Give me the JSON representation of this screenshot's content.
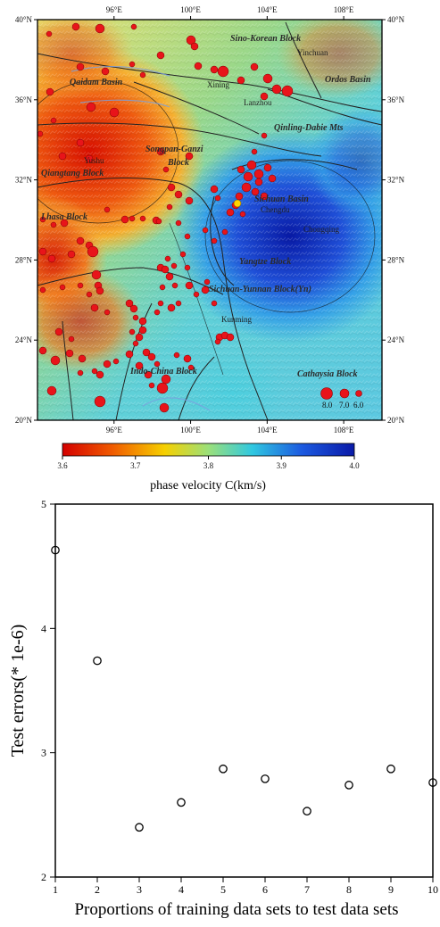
{
  "chart_data": [
    {
      "type": "heatmap",
      "x_ticks": [
        "96°E",
        "100°E",
        "104°E",
        "108°E"
      ],
      "x_tick_values": [
        96,
        100,
        104,
        108
      ],
      "y_ticks": [
        "40°N",
        "36°N",
        "32°N",
        "28°N",
        "24°N",
        "20°N"
      ],
      "y_tick_values": [
        40,
        36,
        32,
        28,
        24,
        20
      ],
      "xlim": [
        92,
        110
      ],
      "ylim": [
        20,
        40
      ],
      "colorbar": {
        "label": "phase velocity C(km/s)",
        "ticks": [
          "3.6",
          "3.7",
          "3.8",
          "3.9",
          "4.0"
        ],
        "range": [
          3.6,
          4.0
        ],
        "colors": [
          "#d40000",
          "#f05a00",
          "#f6d000",
          "#9be07a",
          "#30c8e0",
          "#1c5ae0",
          "#0a1aa8"
        ]
      },
      "region_labels": [
        "Sino-Korean Block",
        "Qaidam Basin",
        "Ordos Basin",
        "Qinling-Dabie Mts",
        "Songpan-Ganzi",
        "Block",
        "Qiangtang Block",
        "Sichuan Basin",
        "Lhasa Block",
        "Yangtze Block",
        "Sichuan-Yunnan Block(Yn)",
        "Indo-China Block",
        "Cathaysia Block"
      ],
      "city_labels": [
        "Yinchuan",
        "Xining",
        "Lanzhou",
        "Chengdu",
        "Chongqing",
        "Kunming",
        "Yushu"
      ],
      "magnitude_legend": [
        "8.0",
        "7.0",
        "6.0"
      ],
      "background_color": "#f2d8a8",
      "earthquake_color": "#e8141a"
    },
    {
      "type": "scatter",
      "x": [
        1,
        2,
        3,
        4,
        5,
        6,
        7,
        8,
        9,
        10
      ],
      "y": [
        4.63,
        3.74,
        2.4,
        2.6,
        2.87,
        2.79,
        2.53,
        2.74,
        2.87,
        2.76
      ],
      "xlabel": "Proportions of training data sets to test data sets",
      "ylabel": "Test errors(* 1e-6)",
      "xlim": [
        1,
        10
      ],
      "ylim": [
        2,
        5
      ],
      "x_ticks": [
        "1",
        "2",
        "3",
        "4",
        "5",
        "6",
        "7",
        "8",
        "9",
        "10"
      ],
      "y_ticks": [
        "2",
        "3",
        "4",
        "5"
      ],
      "marker": "open-circle",
      "grid": false
    }
  ]
}
